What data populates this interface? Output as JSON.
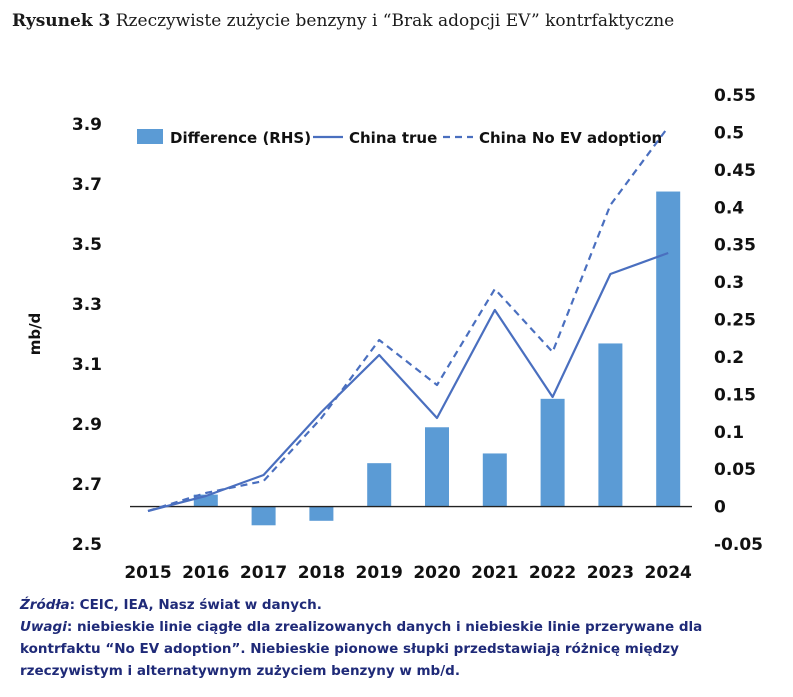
{
  "header": {
    "figure_label": "Rysunek 3",
    "figure_title": "Rzeczywiste zużycie benzyny i “Brak adopcji EV” kontrfaktyczne"
  },
  "chart_data": {
    "type": "bar+line",
    "categories": [
      "2015",
      "2016",
      "2017",
      "2018",
      "2019",
      "2020",
      "2021",
      "2022",
      "2023",
      "2024"
    ],
    "series": [
      {
        "name": "Difference (RHS)",
        "kind": "bar",
        "axis": "right",
        "color": "#5b9bd5",
        "values": [
          0.0,
          0.016,
          -0.025,
          -0.019,
          0.058,
          0.106,
          0.071,
          0.144,
          0.218,
          0.421
        ]
      },
      {
        "name": "China true",
        "kind": "line",
        "axis": "left",
        "color": "#4a6fbf",
        "dash": "solid",
        "values": [
          2.61,
          2.66,
          2.73,
          2.94,
          3.13,
          2.92,
          3.28,
          2.99,
          3.4,
          3.47
        ]
      },
      {
        "name": "China No EV adoption",
        "kind": "line",
        "axis": "left",
        "color": "#4a6fbf",
        "dash": "dashed",
        "values": [
          2.61,
          2.67,
          2.71,
          2.92,
          3.18,
          3.03,
          3.35,
          3.14,
          3.63,
          3.89
        ]
      }
    ],
    "left_axis": {
      "label": "mb/d",
      "ticks": [
        "2.5",
        "2.7",
        "2.9",
        "3.1",
        "3.3",
        "3.5",
        "3.7",
        "3.9"
      ],
      "min": 2.5,
      "max": 3.9
    },
    "right_axis": {
      "ticks": [
        "-0.05",
        "0",
        "0.05",
        "0.1",
        "0.15",
        "0.2",
        "0.25",
        "0.3",
        "0.35",
        "0.4",
        "0.45",
        "0.5",
        "0.55"
      ],
      "min": -0.05,
      "max": 0.55
    },
    "legend": {
      "position": "top",
      "items": [
        "Difference (RHS)",
        "China true",
        "China No EV adoption"
      ]
    }
  },
  "footer": {
    "sources_label": "Źródła",
    "sources_text": ": CEIC, IEA, Nasz świat w danych.",
    "notes_label": "Uwagi",
    "notes_text": ": niebieskie linie ciągłe dla zrealizowanych danych i niebieskie linie przerywane dla kontrfaktu “No EV adoption”. Niebieskie pionowe słupki przedstawiają różnicę między rzeczywistym i alternatywnym zużyciem benzyny w mb/d."
  }
}
